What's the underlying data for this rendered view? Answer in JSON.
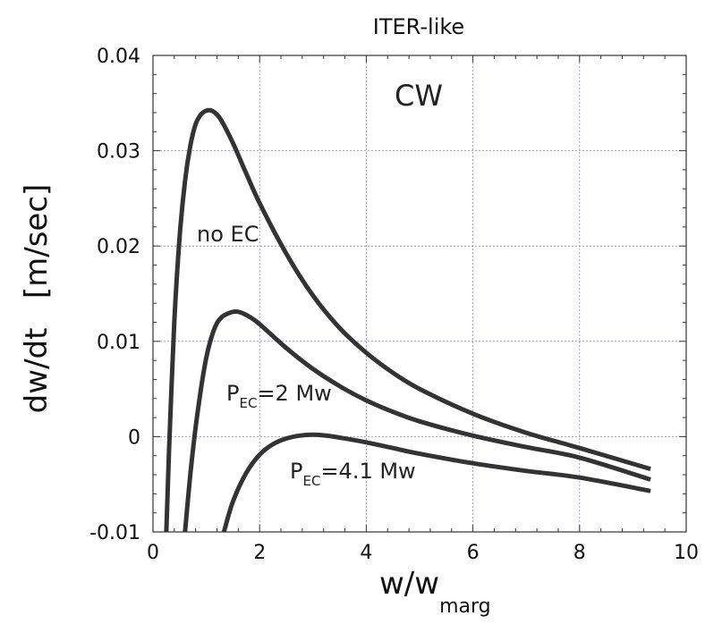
{
  "chart_data": {
    "type": "line",
    "title": "ITER-like",
    "xlabel": "w/w",
    "xlabel_sub": "marg",
    "ylabel": "dw/dt   [m/sec]",
    "xlim": [
      0,
      10
    ],
    "ylim": [
      -0.01,
      0.04
    ],
    "x_ticks": [
      0,
      2,
      4,
      6,
      8,
      10
    ],
    "x_tick_labels": [
      "0",
      "2",
      "4",
      "6",
      "8",
      "10"
    ],
    "y_ticks": [
      -0.01,
      0,
      0.01,
      0.02,
      0.03,
      0.04
    ],
    "y_tick_labels": [
      "-0.01",
      "0",
      "0.01",
      "0.02",
      "0.03",
      "0.04"
    ],
    "grid": true,
    "annotations": {
      "corner": "CW",
      "no_ec": "no EC",
      "p2_main": "P",
      "p2_sub": "EC",
      "p2_rest": "=2 Mw",
      "p4_main": "P",
      "p4_sub": "EC",
      "p4_rest": "=4.1 Mw"
    },
    "series": [
      {
        "x": [
          0.25,
          0.3,
          0.4,
          0.5,
          0.6,
          0.7,
          0.8,
          0.9,
          1.0,
          1.1,
          1.2,
          1.3,
          1.5,
          1.75,
          2.0,
          2.5,
          3.0,
          3.5,
          4.0,
          4.5,
          5.0,
          6.0,
          7.0,
          8.0,
          9.33
        ],
        "y": [
          -0.01,
          -0.0015,
          0.012,
          0.021,
          0.0268,
          0.0305,
          0.0328,
          0.0338,
          0.0342,
          0.0342,
          0.0338,
          0.033,
          0.0308,
          0.0276,
          0.0245,
          0.0192,
          0.0148,
          0.0114,
          0.0088,
          0.0067,
          0.005,
          0.0024,
          0.0004,
          -0.0012,
          -0.0034
        ]
      },
      {
        "x": [
          0.6,
          0.7,
          0.8,
          0.9,
          1.0,
          1.1,
          1.2,
          1.3,
          1.4,
          1.5,
          1.6,
          1.7,
          1.8,
          2.0,
          2.5,
          3.0,
          3.5,
          4.0,
          4.5,
          5.0,
          6.0,
          7.0,
          8.0,
          9.33
        ],
        "y": [
          -0.01,
          -0.004,
          0.001,
          0.005,
          0.0083,
          0.0105,
          0.0119,
          0.0126,
          0.0129,
          0.0131,
          0.0131,
          0.0129,
          0.0126,
          0.0118,
          0.0093,
          0.0071,
          0.0053,
          0.0038,
          0.0026,
          0.0016,
          0.0001,
          -0.0011,
          -0.0022,
          -0.0045
        ]
      },
      {
        "x": [
          1.33,
          1.5,
          1.75,
          2.0,
          2.25,
          2.5,
          2.75,
          3.0,
          3.25,
          3.5,
          4.0,
          4.5,
          5.0,
          6.0,
          7.0,
          8.0,
          9.33
        ],
        "y": [
          -0.01,
          -0.0068,
          -0.0038,
          -0.0019,
          -0.0008,
          -0.0002,
          0.0001,
          0.0002,
          0.0001,
          -0.0001,
          -0.0006,
          -0.0012,
          -0.0018,
          -0.0028,
          -0.0036,
          -0.0043,
          -0.0057
        ]
      }
    ]
  }
}
